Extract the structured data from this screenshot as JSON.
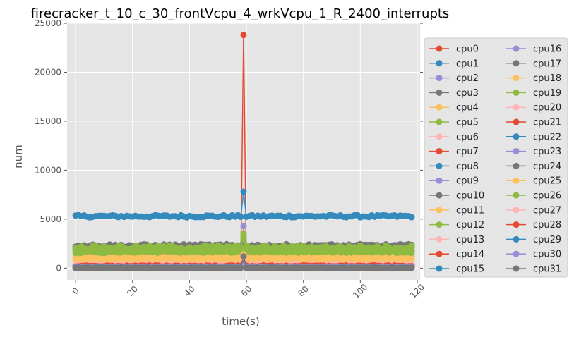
{
  "chart_data": {
    "type": "line",
    "title": "firecracker_t_10_c_30_frontVcpu_4_wrkVcpu_1_R_2400_interrupts",
    "xlabel": "time(s)",
    "ylabel": "num",
    "xlim": [
      -3,
      121
    ],
    "ylim": [
      -1200,
      25000
    ],
    "x_ticks": [
      0,
      20,
      40,
      60,
      80,
      100,
      120
    ],
    "y_ticks": [
      0,
      5000,
      10000,
      15000,
      20000,
      25000
    ],
    "x_range": [
      0,
      118
    ],
    "grid": true,
    "legend_position": "right",
    "legend_columns": 2,
    "series": [
      {
        "name": "cpu0",
        "color": "#E24A33",
        "base": 250,
        "amp": 120,
        "spike": 23800
      },
      {
        "name": "cpu1",
        "color": "#348ABD",
        "base": 5300,
        "amp": 120,
        "spike": 7800
      },
      {
        "name": "cpu2",
        "color": "#988ED5",
        "base": 80,
        "amp": 30,
        "spike": 4300
      },
      {
        "name": "cpu3",
        "color": "#777777",
        "base": 2200,
        "amp": 150,
        "spike": 2500
      },
      {
        "name": "cpu4",
        "color": "#FBC15E",
        "base": 1300,
        "amp": 130,
        "spike": 3000
      },
      {
        "name": "cpu5",
        "color": "#8EBA42",
        "base": 2000,
        "amp": 200,
        "spike": 3500
      },
      {
        "name": "cpu6",
        "color": "#FFB5B8",
        "base": 300,
        "amp": 80,
        "spike": 600
      },
      {
        "name": "cpu7",
        "color": "#E24A33",
        "base": 200,
        "amp": 60,
        "spike": 500
      },
      {
        "name": "cpu8",
        "color": "#348ABD",
        "base": 150,
        "amp": 50,
        "spike": 400
      },
      {
        "name": "cpu9",
        "color": "#988ED5",
        "base": 100,
        "amp": 40,
        "spike": 300
      },
      {
        "name": "cpu10",
        "color": "#777777",
        "base": 1800,
        "amp": 150,
        "spike": 2200
      },
      {
        "name": "cpu11",
        "color": "#FBC15E",
        "base": 1100,
        "amp": 120,
        "spike": 1500
      },
      {
        "name": "cpu12",
        "color": "#8EBA42",
        "base": 1600,
        "amp": 180,
        "spike": 2800
      },
      {
        "name": "cpu13",
        "color": "#FFB5B8",
        "base": 400,
        "amp": 90,
        "spike": 700
      },
      {
        "name": "cpu14",
        "color": "#E24A33",
        "base": 300,
        "amp": 80,
        "spike": 600
      },
      {
        "name": "cpu15",
        "color": "#348ABD",
        "base": 120,
        "amp": 50,
        "spike": 300
      },
      {
        "name": "cpu16",
        "color": "#988ED5",
        "base": 60,
        "amp": 30,
        "spike": 200
      },
      {
        "name": "cpu17",
        "color": "#777777",
        "base": 2300,
        "amp": 150,
        "spike": 2600
      },
      {
        "name": "cpu18",
        "color": "#FBC15E",
        "base": 1000,
        "amp": 120,
        "spike": 1400
      },
      {
        "name": "cpu19",
        "color": "#8EBA42",
        "base": 1900,
        "amp": 200,
        "spike": 3200
      },
      {
        "name": "cpu20",
        "color": "#FFB5B8",
        "base": 250,
        "amp": 60,
        "spike": 500
      },
      {
        "name": "cpu21",
        "color": "#E24A33",
        "base": 180,
        "amp": 50,
        "spike": 400
      },
      {
        "name": "cpu22",
        "color": "#348ABD",
        "base": 90,
        "amp": 40,
        "spike": 300
      },
      {
        "name": "cpu23",
        "color": "#988ED5",
        "base": 50,
        "amp": 20,
        "spike": 200
      },
      {
        "name": "cpu24",
        "color": "#777777",
        "base": 40,
        "amp": 20,
        "spike": 900
      },
      {
        "name": "cpu25",
        "color": "#FBC15E",
        "base": 900,
        "amp": 100,
        "spike": 1300
      },
      {
        "name": "cpu26",
        "color": "#8EBA42",
        "base": 2100,
        "amp": 220,
        "spike": 3000
      },
      {
        "name": "cpu27",
        "color": "#FFB5B8",
        "base": 350,
        "amp": 80,
        "spike": 600
      },
      {
        "name": "cpu28",
        "color": "#E24A33",
        "base": 220,
        "amp": 60,
        "spike": 500
      },
      {
        "name": "cpu29",
        "color": "#348ABD",
        "base": 110,
        "amp": 40,
        "spike": 300
      },
      {
        "name": "cpu30",
        "color": "#988ED5",
        "base": 70,
        "amp": 30,
        "spike": 250
      },
      {
        "name": "cpu31",
        "color": "#777777",
        "base": 30,
        "amp": 15,
        "spike": 1200
      }
    ],
    "spike_x": 59
  }
}
